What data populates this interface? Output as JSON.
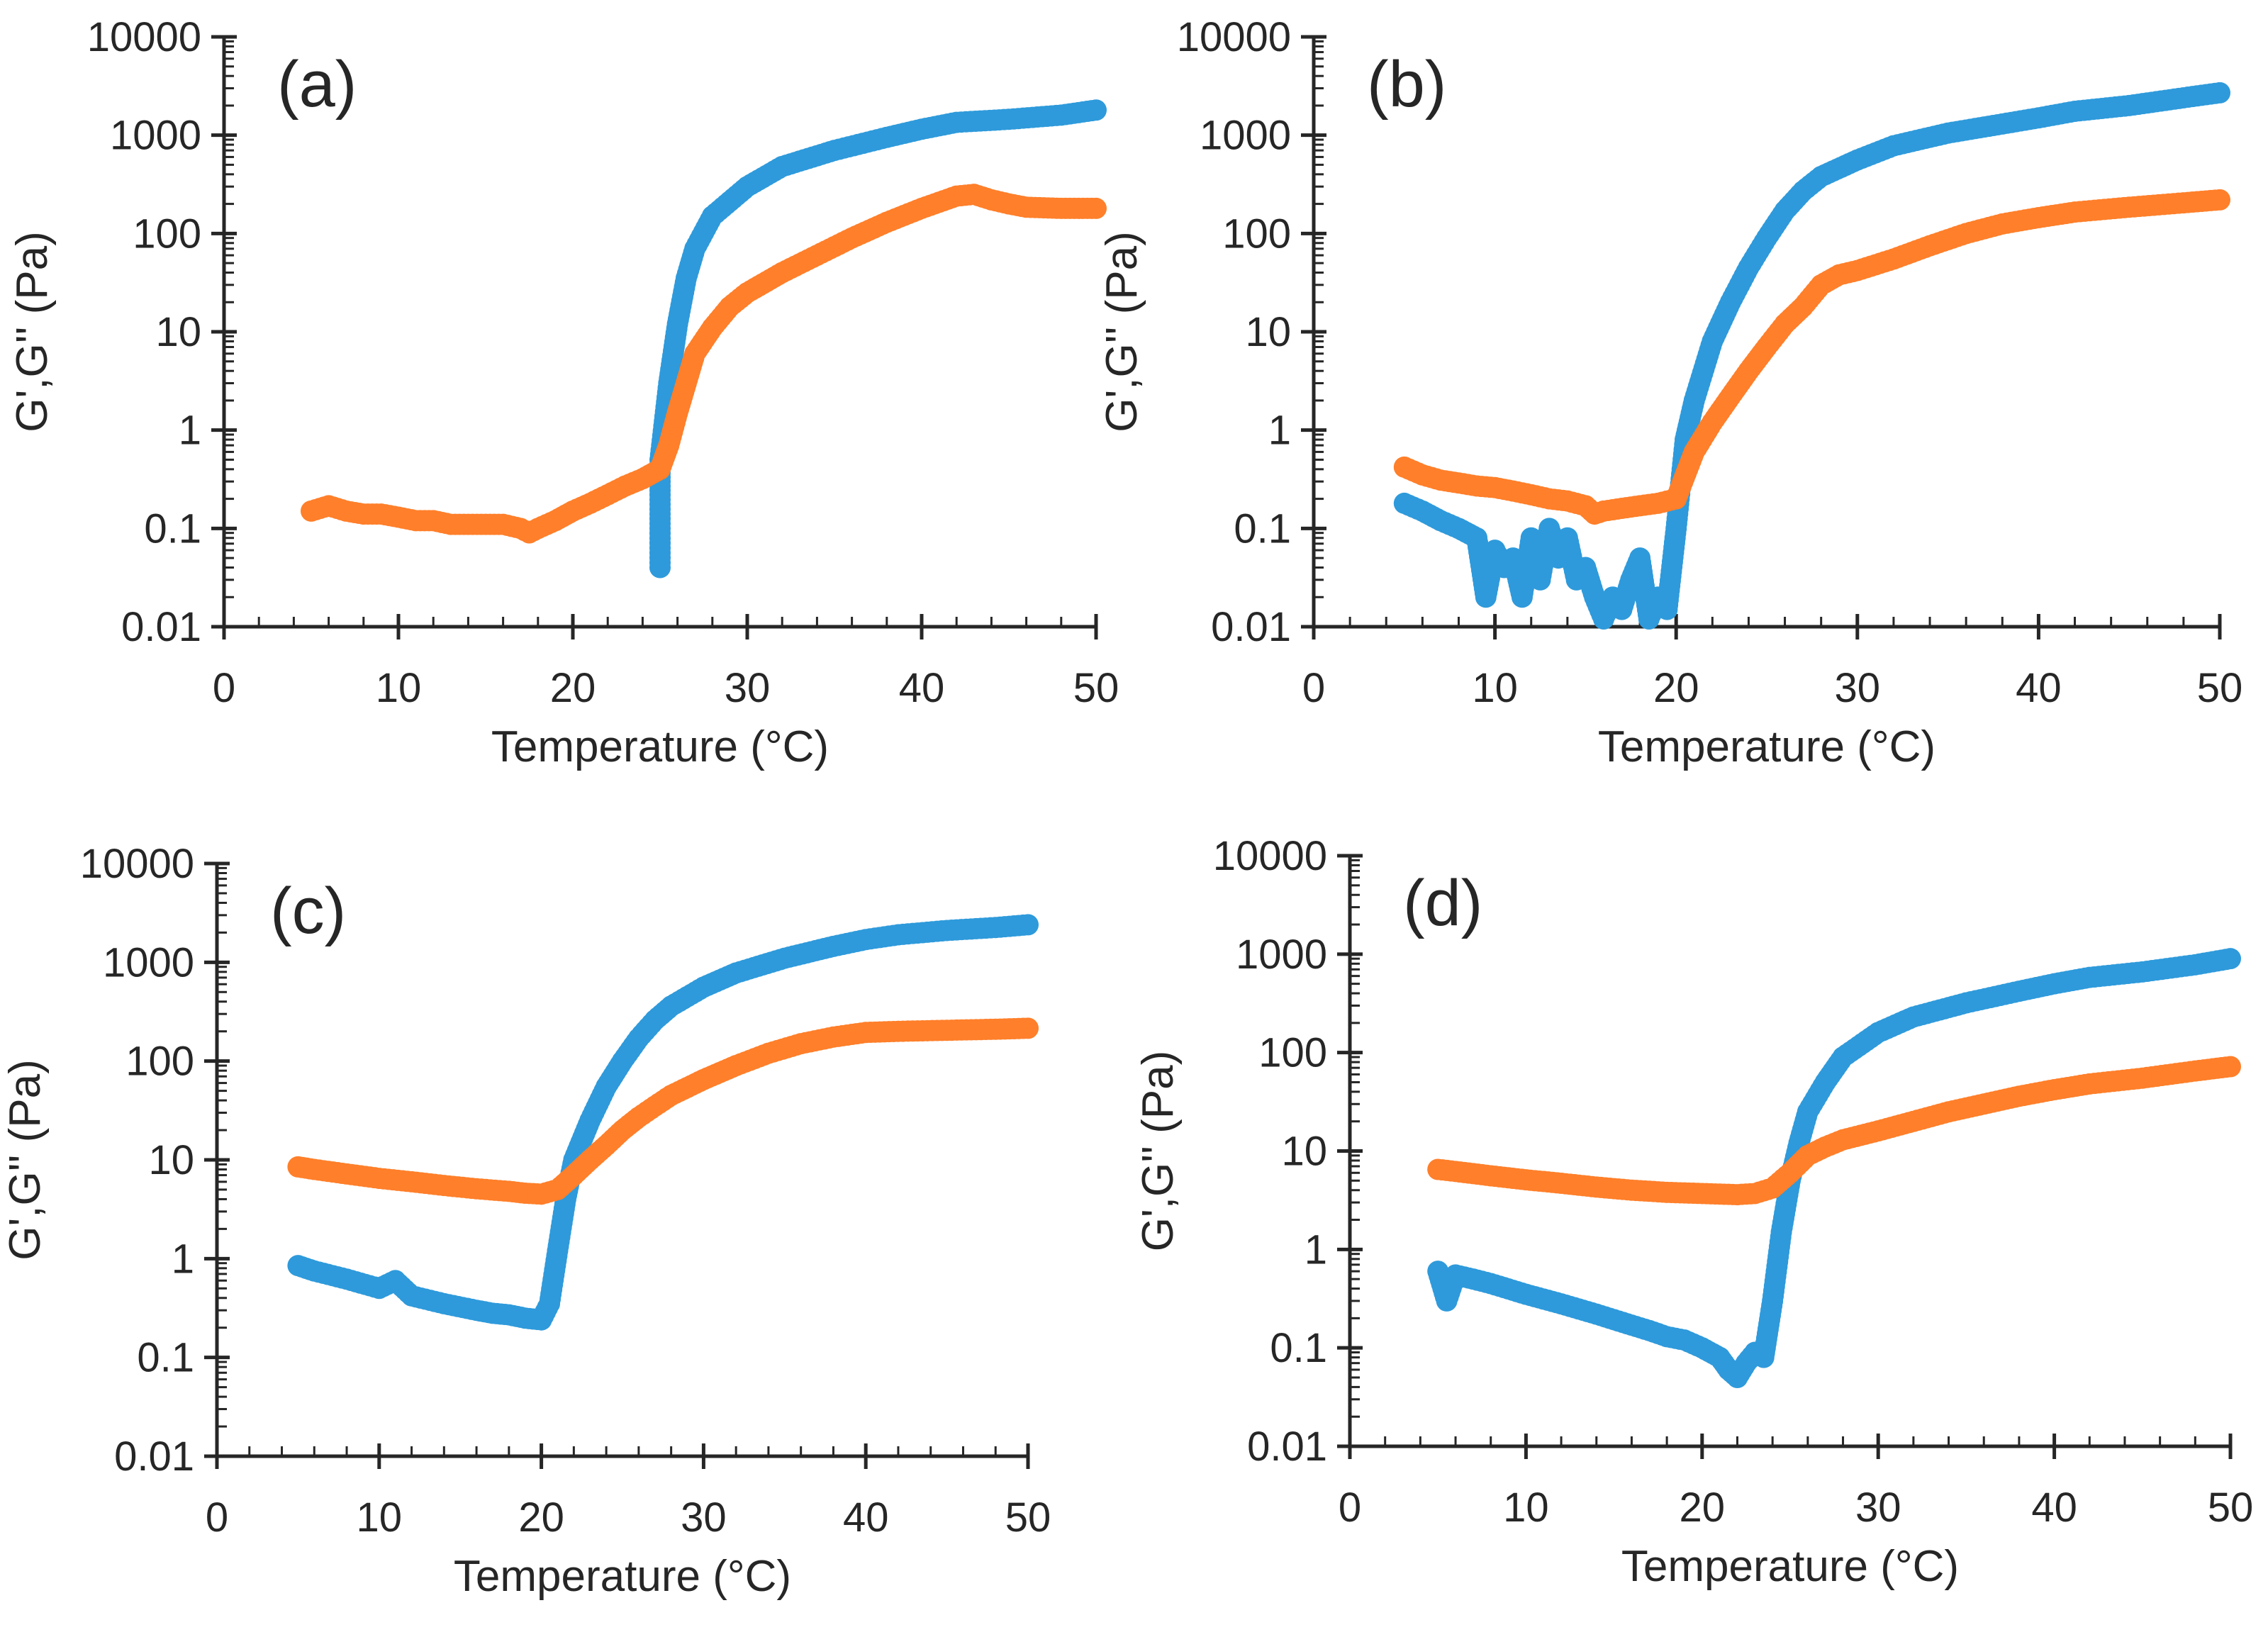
{
  "colors": {
    "g_prime": "#2E9ADB",
    "g_double_prime": "#FF7F2A",
    "axis": "#262626"
  },
  "chart_data": [
    {
      "type": "scatter",
      "panel": "(a)",
      "xlabel": "Temperature (°C)",
      "ylabel": "G',G'' (Pa)",
      "xlim": [
        0,
        50
      ],
      "ylim": [
        0.01,
        10000
      ],
      "yscale": "log",
      "xticks": [
        "0",
        "10",
        "20",
        "30",
        "40",
        "50"
      ],
      "yticks": [
        "0.01",
        "0.1",
        "1",
        "10",
        "100",
        "1000",
        "10000"
      ],
      "series": [
        {
          "name": "G'",
          "color": "#2E9ADB",
          "x": [
            25,
            25,
            25,
            25,
            25.5,
            26,
            26.5,
            27,
            28,
            30,
            32,
            35,
            38,
            40,
            42,
            45,
            48,
            50
          ],
          "y": [
            0.04,
            0.1,
            0.22,
            0.5,
            3,
            12,
            35,
            70,
            150,
            300,
            480,
            700,
            950,
            1150,
            1350,
            1450,
            1600,
            1800
          ]
        },
        {
          "name": "G''",
          "color": "#FF7F2A",
          "x": [
            5,
            6,
            7,
            8,
            9,
            10,
            11,
            12,
            13,
            14,
            15,
            16,
            17,
            17.5,
            18,
            19,
            20,
            21,
            22,
            23,
            24,
            25,
            25.5,
            26,
            26.5,
            27,
            28,
            29,
            30,
            32,
            34,
            36,
            38,
            40,
            42,
            43,
            44,
            45,
            46,
            48,
            50
          ],
          "y": [
            0.15,
            0.17,
            0.15,
            0.14,
            0.14,
            0.13,
            0.12,
            0.12,
            0.11,
            0.11,
            0.11,
            0.11,
            0.1,
            0.09,
            0.1,
            0.12,
            0.15,
            0.18,
            0.22,
            0.27,
            0.32,
            0.4,
            0.7,
            1.5,
            3,
            6,
            11,
            18,
            25,
            40,
            60,
            90,
            130,
            180,
            240,
            250,
            220,
            200,
            185,
            180,
            180
          ]
        }
      ]
    },
    {
      "type": "scatter",
      "panel": "(b)",
      "xlabel": "Temperature (°C)",
      "ylabel": "G',G'' (Pa)",
      "xlim": [
        0,
        50
      ],
      "ylim": [
        0.01,
        10000
      ],
      "yscale": "log",
      "xticks": [
        "0",
        "10",
        "20",
        "30",
        "40",
        "50"
      ],
      "yticks": [
        "0.01",
        "0.1",
        "1",
        "10",
        "100",
        "1000",
        "10000"
      ],
      "series": [
        {
          "name": "G'",
          "color": "#2E9ADB",
          "x": [
            5,
            6,
            7,
            8,
            9,
            9.5,
            10,
            10.5,
            11,
            11.5,
            12,
            12.5,
            13,
            13.5,
            14,
            14.5,
            15,
            15.5,
            16,
            16.5,
            17,
            17.5,
            18,
            18.5,
            19,
            19.5,
            20,
            20.5,
            21,
            22,
            23,
            24,
            25,
            26,
            27,
            28,
            30,
            32,
            35,
            38,
            40,
            42,
            45,
            48,
            50
          ],
          "y": [
            0.18,
            0.15,
            0.12,
            0.1,
            0.08,
            0.02,
            0.06,
            0.04,
            0.05,
            0.02,
            0.08,
            0.03,
            0.1,
            0.05,
            0.08,
            0.03,
            0.04,
            0.02,
            0.012,
            0.02,
            0.015,
            0.03,
            0.05,
            0.012,
            0.02,
            0.015,
            0.1,
            0.8,
            2,
            8,
            20,
            45,
            90,
            170,
            270,
            380,
            560,
            780,
            1050,
            1300,
            1500,
            1750,
            2000,
            2400,
            2700
          ]
        },
        {
          "name": "G''",
          "color": "#FF7F2A",
          "x": [
            5,
            6,
            7,
            8,
            9,
            10,
            11,
            12,
            13,
            14,
            15,
            15.5,
            16,
            17,
            18,
            19,
            20,
            21,
            22,
            23,
            24,
            25,
            26,
            27,
            28,
            29,
            30,
            32,
            34,
            36,
            38,
            40,
            42,
            45,
            48,
            50
          ],
          "y": [
            0.42,
            0.35,
            0.31,
            0.29,
            0.27,
            0.26,
            0.24,
            0.22,
            0.2,
            0.19,
            0.17,
            0.14,
            0.15,
            0.16,
            0.17,
            0.18,
            0.2,
            0.6,
            1.2,
            2.2,
            4,
            7,
            12,
            18,
            30,
            38,
            42,
            55,
            75,
            100,
            125,
            145,
            165,
            185,
            205,
            220
          ]
        }
      ]
    },
    {
      "type": "scatter",
      "panel": "(c)",
      "xlabel": "Temperature (°C)",
      "ylabel": "G',G'' (Pa)",
      "xlim": [
        0,
        50
      ],
      "ylim": [
        0.01,
        10000
      ],
      "yscale": "log",
      "xticks": [
        "0",
        "10",
        "20",
        "30",
        "40",
        "50"
      ],
      "yticks": [
        "0.01",
        "0.1",
        "1",
        "10",
        "100",
        "1000",
        "10000"
      ],
      "series": [
        {
          "name": "G'",
          "color": "#2E9ADB",
          "x": [
            5,
            6,
            8,
            10,
            11,
            12,
            14,
            16,
            17,
            18,
            19,
            20,
            20.5,
            21,
            21.5,
            22,
            23,
            24,
            25,
            26,
            27,
            28,
            30,
            32,
            35,
            38,
            40,
            42,
            45,
            48,
            50
          ],
          "y": [
            0.85,
            0.75,
            0.62,
            0.5,
            0.6,
            0.42,
            0.35,
            0.3,
            0.28,
            0.27,
            0.25,
            0.24,
            0.35,
            1.2,
            4,
            10,
            25,
            55,
            100,
            170,
            260,
            360,
            560,
            780,
            1100,
            1450,
            1700,
            1900,
            2100,
            2250,
            2400
          ]
        },
        {
          "name": "G''",
          "color": "#FF7F2A",
          "x": [
            5,
            6,
            8,
            10,
            12,
            14,
            16,
            18,
            19,
            20,
            21,
            22,
            23,
            24,
            25,
            26,
            27,
            28,
            30,
            32,
            34,
            36,
            38,
            40,
            42,
            45,
            48,
            50
          ],
          "y": [
            8.5,
            8,
            7.2,
            6.5,
            6,
            5.5,
            5.1,
            4.8,
            4.6,
            4.5,
            5,
            7,
            10,
            14,
            20,
            27,
            35,
            45,
            65,
            90,
            120,
            150,
            175,
            195,
            200,
            205,
            210,
            215
          ]
        }
      ]
    },
    {
      "type": "scatter",
      "panel": "(d)",
      "xlabel": "Temperature (°C)",
      "ylabel": "G',G'' (Pa)",
      "xlim": [
        0,
        50
      ],
      "ylim": [
        0.01,
        10000
      ],
      "yscale": "log",
      "xticks": [
        "0",
        "10",
        "20",
        "30",
        "40",
        "50"
      ],
      "yticks": [
        "0.01",
        "0.1",
        "1",
        "10",
        "100",
        "1000",
        "10000"
      ],
      "series": [
        {
          "name": "G'",
          "color": "#2E9ADB",
          "x": [
            5,
            5.5,
            6,
            7,
            8,
            10,
            12,
            14,
            16,
            17,
            18,
            19,
            20,
            21,
            21.5,
            22,
            22.5,
            23,
            23.5,
            24,
            24.5,
            25,
            25.5,
            26,
            27,
            28,
            30,
            32,
            35,
            38,
            40,
            42,
            45,
            48,
            50
          ],
          "y": [
            0.6,
            0.3,
            0.55,
            0.5,
            0.45,
            0.35,
            0.28,
            0.22,
            0.17,
            0.15,
            0.13,
            0.12,
            0.1,
            0.08,
            0.06,
            0.05,
            0.07,
            0.09,
            0.08,
            0.3,
            1.5,
            5,
            12,
            25,
            50,
            90,
            160,
            230,
            320,
            420,
            500,
            580,
            660,
            780,
            900
          ]
        },
        {
          "name": "G''",
          "color": "#FF7F2A",
          "x": [
            5,
            6,
            8,
            10,
            12,
            14,
            16,
            18,
            20,
            22,
            23,
            24,
            25,
            26,
            27,
            28,
            30,
            32,
            34,
            36,
            38,
            40,
            42,
            45,
            48,
            50
          ],
          "y": [
            6.5,
            6.2,
            5.6,
            5.1,
            4.7,
            4.3,
            4,
            3.8,
            3.7,
            3.6,
            3.7,
            4.2,
            6,
            9,
            11,
            13,
            16,
            20,
            25,
            30,
            36,
            42,
            48,
            55,
            65,
            72
          ]
        }
      ]
    }
  ]
}
